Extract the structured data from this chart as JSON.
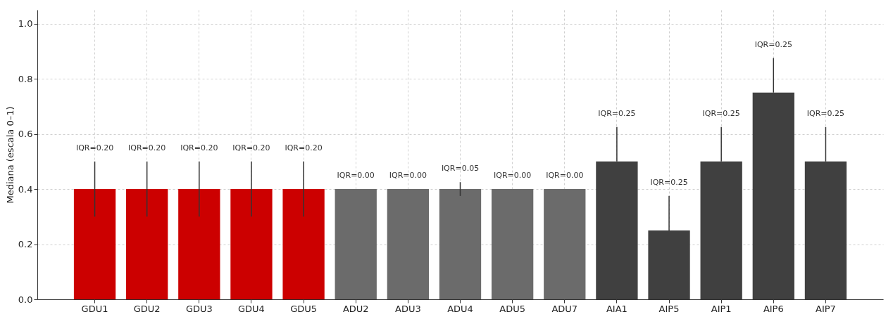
{
  "chart_data": {
    "type": "bar",
    "ylabel": "Mediana (escala 0–1)",
    "categories": [
      "GDU1",
      "GDU2",
      "GDU3",
      "GDU4",
      "GDU5",
      "ADU2",
      "ADU3",
      "ADU4",
      "ADU5",
      "ADU7",
      "AIA1",
      "AIP5",
      "AIP1",
      "AIP6",
      "AIP7"
    ],
    "values": [
      0.4,
      0.4,
      0.4,
      0.4,
      0.4,
      0.4,
      0.4,
      0.4,
      0.4,
      0.4,
      0.5,
      0.25,
      0.5,
      0.75,
      0.5
    ],
    "colors": [
      "#cc0000",
      "#cc0000",
      "#cc0000",
      "#cc0000",
      "#cc0000",
      "#6b6b6b",
      "#6b6b6b",
      "#6b6b6b",
      "#6b6b6b",
      "#6b6b6b",
      "#404040",
      "#404040",
      "#404040",
      "#404040",
      "#404040"
    ],
    "errors": [
      [
        0.3,
        0.5
      ],
      [
        0.3,
        0.5
      ],
      [
        0.3,
        0.5
      ],
      [
        0.3,
        0.5
      ],
      [
        0.3,
        0.5
      ],
      null,
      null,
      [
        0.375,
        0.425
      ],
      null,
      null,
      [
        0.5,
        0.625
      ],
      [
        0.25,
        0.375
      ],
      [
        0.5,
        0.625
      ],
      [
        0.75,
        0.875
      ],
      [
        0.5,
        0.625
      ]
    ],
    "annotations": [
      {
        "text": "IQR=0.20",
        "x": "GDU1",
        "y": 0.5
      },
      {
        "text": "IQR=0.20",
        "x": "GDU2",
        "y": 0.5
      },
      {
        "text": "IQR=0.20",
        "x": "GDU3",
        "y": 0.5
      },
      {
        "text": "IQR=0.20",
        "x": "GDU4",
        "y": 0.5
      },
      {
        "text": "IQR=0.20",
        "x": "GDU5",
        "y": 0.5
      },
      {
        "text": "IQR=0.00",
        "x": "ADU2",
        "y": 0.4
      },
      {
        "text": "IQR=0.00",
        "x": "ADU3",
        "y": 0.4
      },
      {
        "text": "IQR=0.05",
        "x": "ADU4",
        "y": 0.425
      },
      {
        "text": "IQR=0.00",
        "x": "ADU5",
        "y": 0.4
      },
      {
        "text": "IQR=0.00",
        "x": "ADU7",
        "y": 0.4
      },
      {
        "text": "IQR=0.25",
        "x": "AIA1",
        "y": 0.625
      },
      {
        "text": "IQR=0.25",
        "x": "AIP5",
        "y": 0.375
      },
      {
        "text": "IQR=0.25",
        "x": "AIP1",
        "y": 0.625
      },
      {
        "text": "IQR=0.25",
        "x": "AIP6",
        "y": 0.875
      },
      {
        "text": "IQR=0.25",
        "x": "AIP7",
        "y": 0.625
      }
    ],
    "ylim": [
      0,
      1.05
    ],
    "yticks": [
      {
        "value": 0,
        "label": "0.0"
      },
      {
        "value": 0.2,
        "label": "0.2"
      },
      {
        "value": 0.4,
        "label": "0.4"
      },
      {
        "value": 0.6,
        "label": "0.6"
      },
      {
        "value": 0.8,
        "label": "0.8"
      },
      {
        "value": 1,
        "label": "1.0"
      }
    ],
    "grid": true
  }
}
